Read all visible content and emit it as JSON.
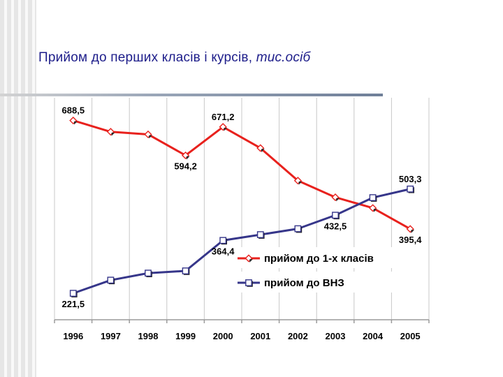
{
  "slide": {
    "title": "Прийом до перших класів і курсів,",
    "title_unit": "тис.осіб"
  },
  "chart_data": {
    "type": "line",
    "x": [
      "1996",
      "1997",
      "1998",
      "1999",
      "2000",
      "2001",
      "2002",
      "2003",
      "2004",
      "2005"
    ],
    "ylim": [
      150,
      750
    ],
    "grid": "vertical",
    "legend_position": "inside-right",
    "series": [
      {
        "name": "прийом до 1-х класів",
        "color": "#e8211d",
        "marker": "diamond",
        "values": [
          688.5,
          658,
          651,
          594.2,
          671.2,
          614,
          526,
          481,
          452,
          395.4
        ],
        "labels": [
          {
            "index": 0,
            "text": "688,5",
            "position": "above"
          },
          {
            "index": 3,
            "text": "594,2",
            "position": "below"
          },
          {
            "index": 4,
            "text": "671,2",
            "position": "above"
          },
          {
            "index": 9,
            "text": "395,4",
            "position": "below"
          }
        ]
      },
      {
        "name": "прийом до ВНЗ",
        "color": "#36368a",
        "marker": "square",
        "values": [
          221.5,
          257,
          276,
          282,
          364.4,
          380,
          396,
          432.5,
          480,
          503.3
        ],
        "labels": [
          {
            "index": 0,
            "text": "221,5",
            "position": "below"
          },
          {
            "index": 4,
            "text": "364,4",
            "position": "below"
          },
          {
            "index": 7,
            "text": "432,5",
            "position": "below"
          },
          {
            "index": 9,
            "text": "503,3",
            "position": "above"
          }
        ]
      }
    ]
  }
}
